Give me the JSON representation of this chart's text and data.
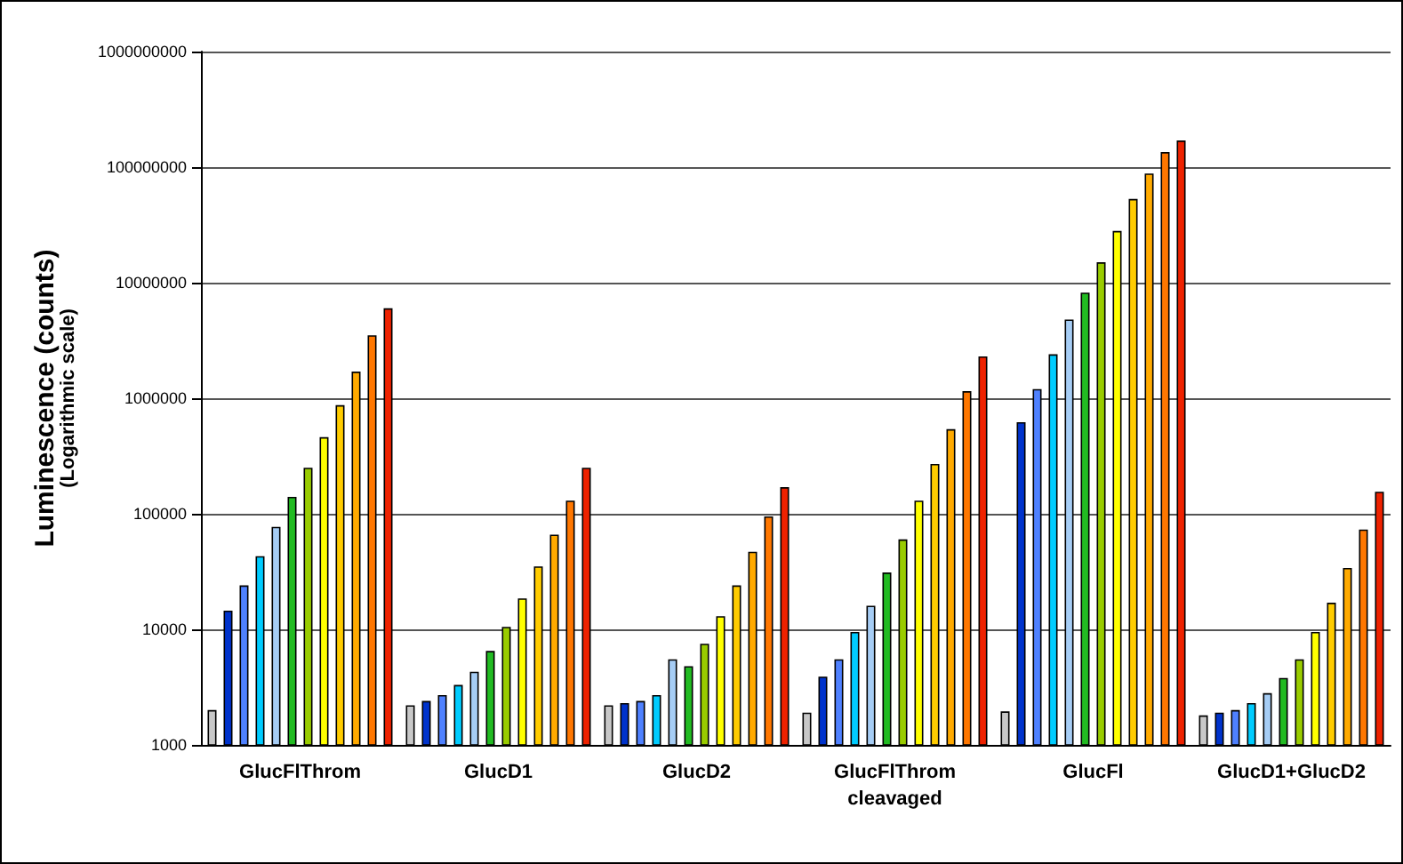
{
  "chart_data": {
    "type": "bar",
    "ylabel": "Luminescence (counts)\n(Logarithmic scale)",
    "log": true,
    "grid": "y",
    "categories": [
      "GlucFlThrom",
      "GlucD1",
      "GlucD2",
      "GlucFlThrom\ncleavaged",
      "GlucFl",
      "GlucD1+GlucD2"
    ],
    "ylim": [
      1000,
      1000000000
    ],
    "yticks": [
      1000,
      10000,
      100000,
      1000000,
      10000000,
      100000000,
      1000000000
    ],
    "series": [
      {
        "color": "#c8c8c8",
        "values": [
          2000,
          2200,
          2200,
          1900,
          1950,
          1800
        ]
      },
      {
        "color": "#0033cc",
        "values": [
          14500,
          2400,
          2300,
          3900,
          620000,
          1900
        ]
      },
      {
        "color": "#4f81ff",
        "values": [
          24000,
          2700,
          2400,
          5500,
          1200000,
          2000
        ]
      },
      {
        "color": "#00ccff",
        "values": [
          43000,
          3300,
          2700,
          9500,
          2400000,
          2300
        ]
      },
      {
        "color": "#a6cdf5",
        "values": [
          77000,
          4300,
          5500,
          16000,
          4800000,
          2800
        ]
      },
      {
        "color": "#22bb22",
        "values": [
          140000,
          6500,
          4800,
          31000,
          8200000,
          3800
        ]
      },
      {
        "color": "#99cc00",
        "values": [
          250000,
          10500,
          7500,
          60000,
          15000000,
          5500
        ]
      },
      {
        "color": "#ffff00",
        "values": [
          460000,
          18500,
          13000,
          130000,
          28000000,
          9500
        ]
      },
      {
        "color": "#ffcc00",
        "values": [
          870000,
          35000,
          24000,
          270000,
          53000000,
          17000
        ]
      },
      {
        "color": "#ffaa00",
        "values": [
          1700000,
          66000,
          47000,
          540000,
          88000000,
          34000
        ]
      },
      {
        "color": "#ff7700",
        "values": [
          3500000,
          130000,
          95000,
          1150000,
          135000000,
          73000
        ]
      },
      {
        "color": "#ee2200",
        "values": [
          6000000,
          250000,
          170000,
          2300000,
          170000000,
          155000
        ]
      }
    ]
  }
}
